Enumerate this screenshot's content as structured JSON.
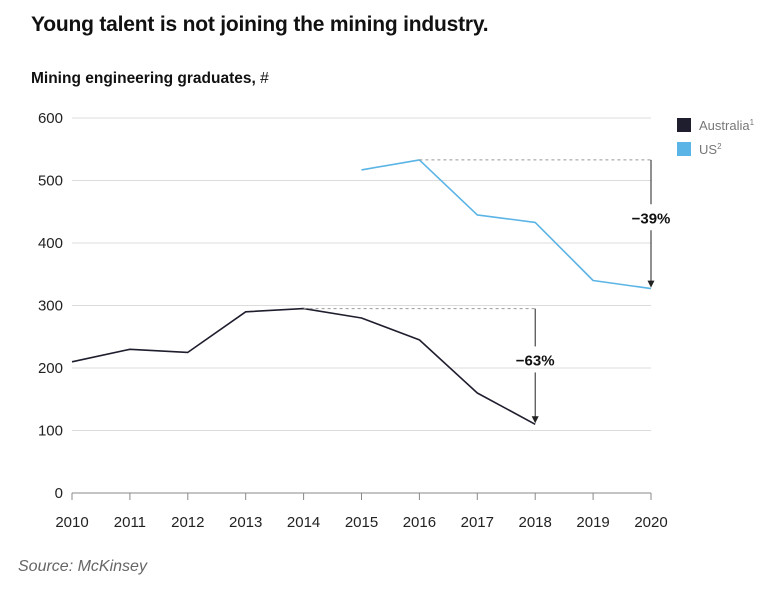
{
  "header": {
    "title": "Young talent is not joining the mining industry.",
    "subtitle": "Mining engineering graduates,",
    "subtitle_unit": "#"
  },
  "footer": {
    "source": "Source: McKinsey"
  },
  "chart_data": {
    "type": "line",
    "title": "Young talent is not joining the mining industry.",
    "ylabel": "Mining engineering graduates, #",
    "xlabel": "",
    "x": [
      2010,
      2011,
      2012,
      2013,
      2014,
      2015,
      2016,
      2017,
      2018,
      2019,
      2020
    ],
    "ylim": [
      0,
      600
    ],
    "yticks": [
      0,
      100,
      200,
      300,
      400,
      500,
      600
    ],
    "grid": true,
    "legend": "top-right",
    "series": [
      {
        "name": "Australia",
        "marker": "1",
        "color": "#1e1e2e",
        "values": [
          210,
          230,
          225,
          290,
          295,
          280,
          245,
          160,
          110,
          null,
          null
        ]
      },
      {
        "name": "US",
        "marker": "2",
        "color": "#5ab4e5",
        "values": [
          null,
          null,
          null,
          null,
          null,
          517,
          533,
          445,
          433,
          340,
          327
        ]
      }
    ],
    "annotations": [
      {
        "label": "−39%",
        "series": "US",
        "from_x": 2016,
        "from_y": 533,
        "to_x": 2020,
        "to_y": 327
      },
      {
        "label": "−63%",
        "series": "Australia",
        "from_x": 2014,
        "from_y": 295,
        "to_x": 2018,
        "to_y": 110
      }
    ]
  }
}
